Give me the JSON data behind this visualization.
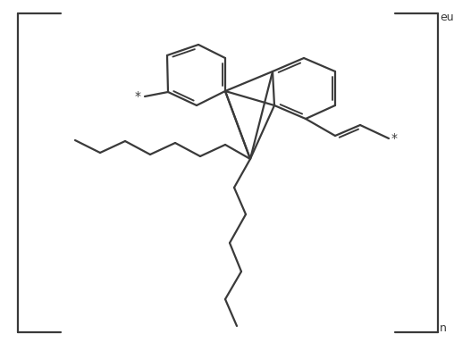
{
  "bg_color": "#ffffff",
  "line_color": "#3a3a3a",
  "line_width": 1.6,
  "label_eu": "eu",
  "label_n": "n",
  "label_star": "*",
  "font_size": 9,
  "font_size_star": 10
}
